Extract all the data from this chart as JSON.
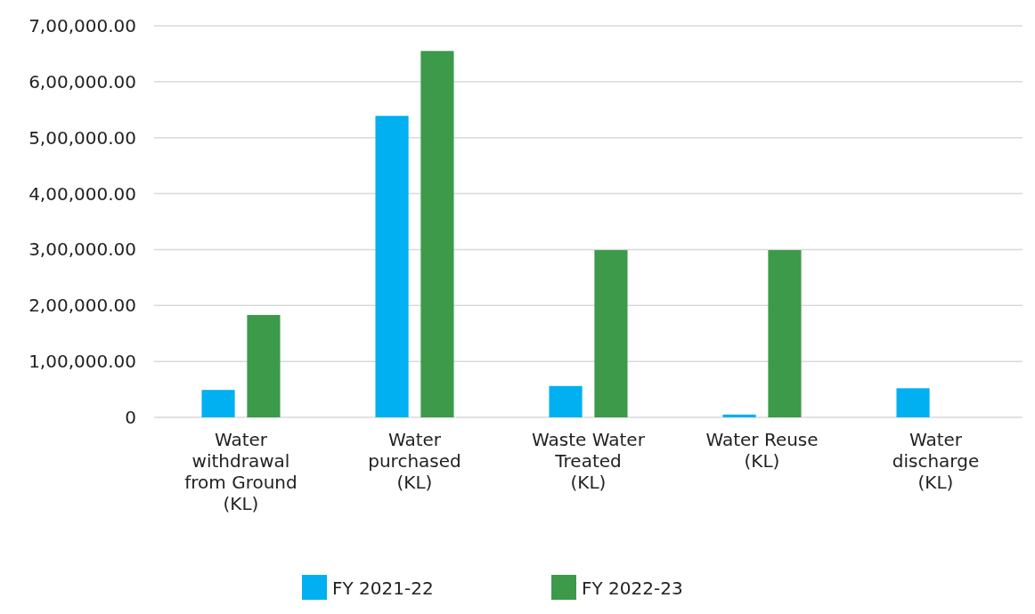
{
  "chart_data": {
    "type": "bar",
    "categories": [
      "Water withdrawal from Ground (KL)",
      "Water purchased (KL)",
      "Waste Water Treated (KL)",
      "Water Reuse (KL)",
      "Water discharge (KL)"
    ],
    "series": [
      {
        "name": "FY 2021-22",
        "color": "#00b0f0",
        "values": [
          49000,
          539000,
          56000,
          5000,
          52000
        ]
      },
      {
        "name": "FY 2022-23",
        "color": "#3c9a4a",
        "values": [
          183000,
          655000,
          299000,
          299000,
          0
        ]
      }
    ],
    "ylim": [
      0,
      700000
    ],
    "yticks": [
      0,
      {
        "value": 100000,
        "label": "1,00,000.00"
      },
      {
        "value": 200000,
        "label": "2,00,000.00"
      },
      {
        "value": 300000,
        "label": "3,00,000.00"
      },
      {
        "value": 400000,
        "label": "4,00,000.00"
      },
      {
        "value": 500000,
        "label": "5,00,000.00"
      },
      {
        "value": 600000,
        "label": "6,00,000.00"
      },
      {
        "value": 700000,
        "label": "7,00,000.00"
      }
    ],
    "grid": "y",
    "legend": "bottom"
  }
}
